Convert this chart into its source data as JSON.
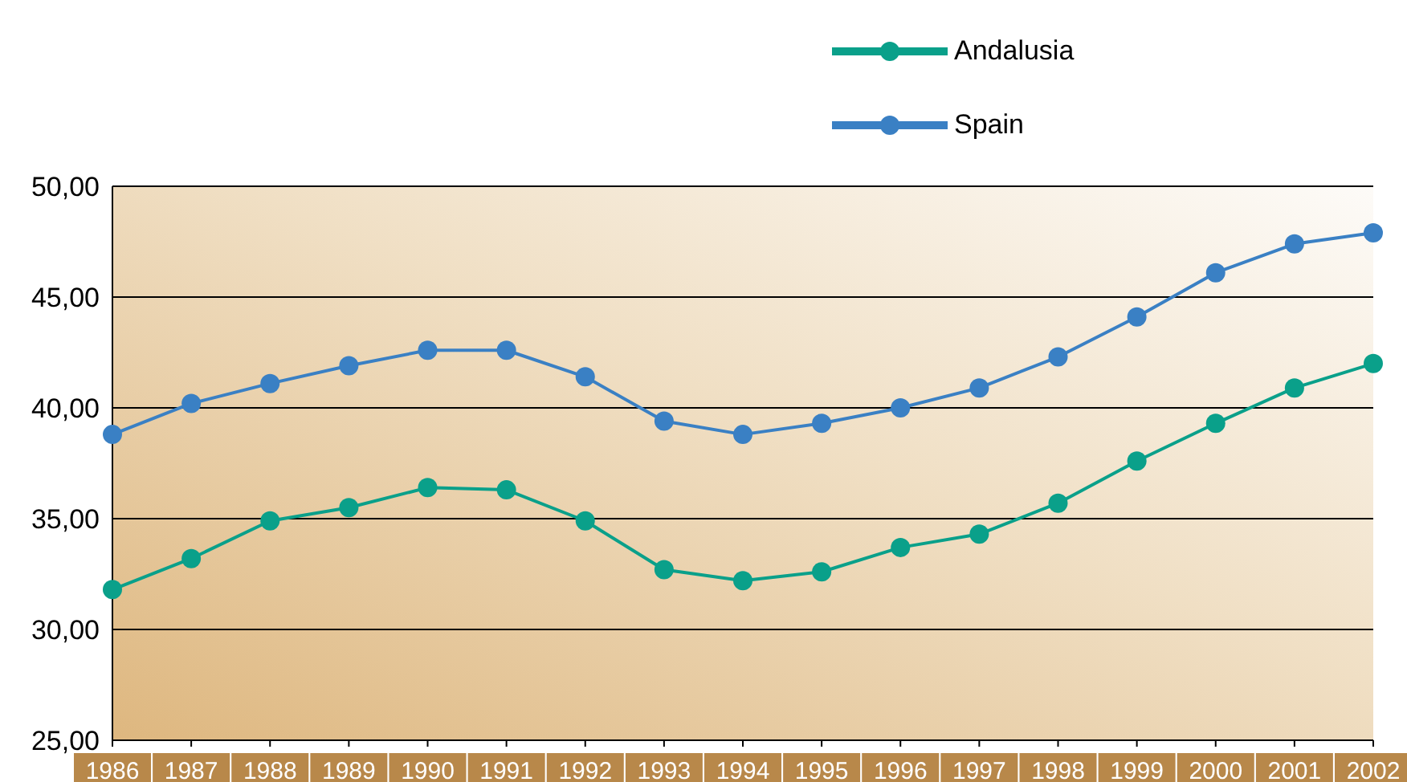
{
  "chart_data": {
    "type": "line",
    "categories": [
      "1986",
      "1987",
      "1988",
      "1989",
      "1990",
      "1991",
      "1992",
      "1993",
      "1994",
      "1995",
      "1996",
      "1997",
      "1998",
      "1999",
      "2000",
      "2001",
      "2002"
    ],
    "series": [
      {
        "name": "Andalusia",
        "color": "#0aa08a",
        "values": [
          31.8,
          33.2,
          34.9,
          35.5,
          36.4,
          36.3,
          34.9,
          32.7,
          32.2,
          32.6,
          33.7,
          34.3,
          35.7,
          37.6,
          39.3,
          40.9,
          42.0
        ]
      },
      {
        "name": "Spain",
        "color": "#3a80c4",
        "values": [
          38.8,
          40.2,
          41.1,
          41.9,
          42.6,
          42.6,
          41.4,
          39.4,
          38.8,
          39.3,
          40.0,
          40.9,
          42.3,
          44.1,
          46.1,
          47.4,
          47.9
        ]
      }
    ],
    "ylim": [
      25,
      50
    ],
    "yticks": [
      {
        "value": 25,
        "label": "25,00"
      },
      {
        "value": 30,
        "label": "30,00"
      },
      {
        "value": 35,
        "label": "35,00"
      },
      {
        "value": 40,
        "label": "40,00"
      },
      {
        "value": 45,
        "label": "45,00"
      },
      {
        "value": 50,
        "label": "50,00"
      }
    ],
    "grid": "y",
    "legend": "top right",
    "marker": "circle",
    "line_style": "solid"
  }
}
